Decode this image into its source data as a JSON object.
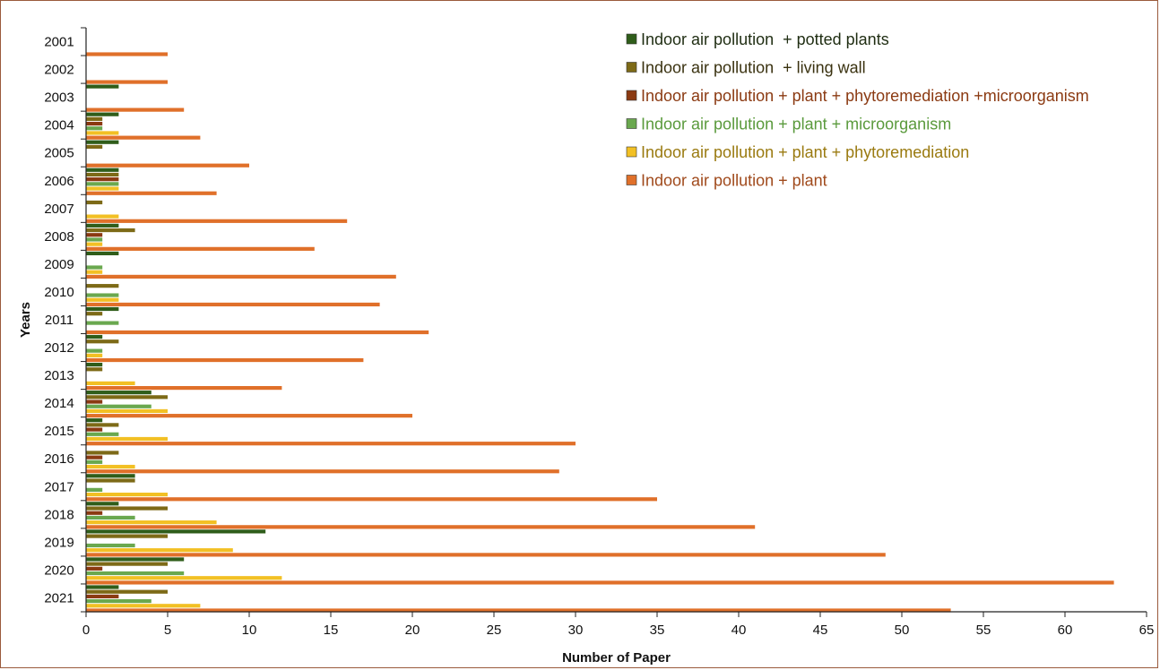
{
  "chart_data": {
    "type": "bar",
    "orientation": "horizontal",
    "xlabel": "Number of Paper",
    "ylabel": "Years",
    "xlim": [
      0,
      65
    ],
    "xticks": [
      0,
      5,
      10,
      15,
      20,
      25,
      30,
      35,
      40,
      45,
      50,
      55,
      60,
      65
    ],
    "categories": [
      "2001",
      "2002",
      "2003",
      "2004",
      "2005",
      "2006",
      "2007",
      "2008",
      "2009",
      "2010",
      "2011",
      "2012",
      "2013",
      "2014",
      "2015",
      "2016",
      "2017",
      "2018",
      "2019",
      "2020",
      "2021"
    ],
    "legend_position": "top-right",
    "series": [
      {
        "name": "Indoor air pollution  + potted plants",
        "color": "#2f5d1a",
        "text_color": "#1f2d12",
        "values": [
          0,
          0,
          2,
          2,
          2,
          2,
          0,
          2,
          2,
          0,
          2,
          1,
          1,
          4,
          1,
          0,
          3,
          2,
          11,
          6,
          2
        ]
      },
      {
        "name": "Indoor air pollution  + living wall",
        "color": "#7d6a17",
        "text_color": "#3a3210",
        "values": [
          0,
          0,
          0,
          1,
          1,
          2,
          1,
          3,
          0,
          2,
          1,
          2,
          1,
          5,
          2,
          2,
          3,
          5,
          5,
          5,
          5
        ]
      },
      {
        "name": "Indoor air pollution + plant + phytoremediation +microorganism",
        "color": "#8b3a12",
        "text_color": "#8b3a12",
        "values": [
          0,
          0,
          0,
          1,
          0,
          2,
          0,
          1,
          0,
          0,
          0,
          0,
          0,
          1,
          1,
          1,
          0,
          1,
          0,
          1,
          2
        ]
      },
      {
        "name": "Indoor air pollution + plant + microorganism",
        "color": "#6aa84f",
        "text_color": "#5a9a3c",
        "values": [
          0,
          0,
          0,
          1,
          0,
          2,
          0,
          1,
          1,
          2,
          2,
          1,
          0,
          4,
          2,
          1,
          1,
          3,
          3,
          6,
          4
        ]
      },
      {
        "name": "Indoor air pollution + plant + phytoremediation",
        "color": "#f2c024",
        "text_color": "#9a7a10",
        "values": [
          0,
          0,
          0,
          2,
          0,
          2,
          2,
          1,
          1,
          2,
          0,
          1,
          3,
          5,
          5,
          3,
          5,
          8,
          9,
          12,
          7
        ]
      },
      {
        "name": "Indoor air pollution + plant",
        "color": "#e0702a",
        "text_color": "#a04a1c",
        "values": [
          5,
          5,
          6,
          7,
          10,
          8,
          16,
          14,
          19,
          18,
          21,
          17,
          12,
          20,
          30,
          29,
          35,
          41,
          49,
          63,
          53
        ]
      }
    ]
  }
}
